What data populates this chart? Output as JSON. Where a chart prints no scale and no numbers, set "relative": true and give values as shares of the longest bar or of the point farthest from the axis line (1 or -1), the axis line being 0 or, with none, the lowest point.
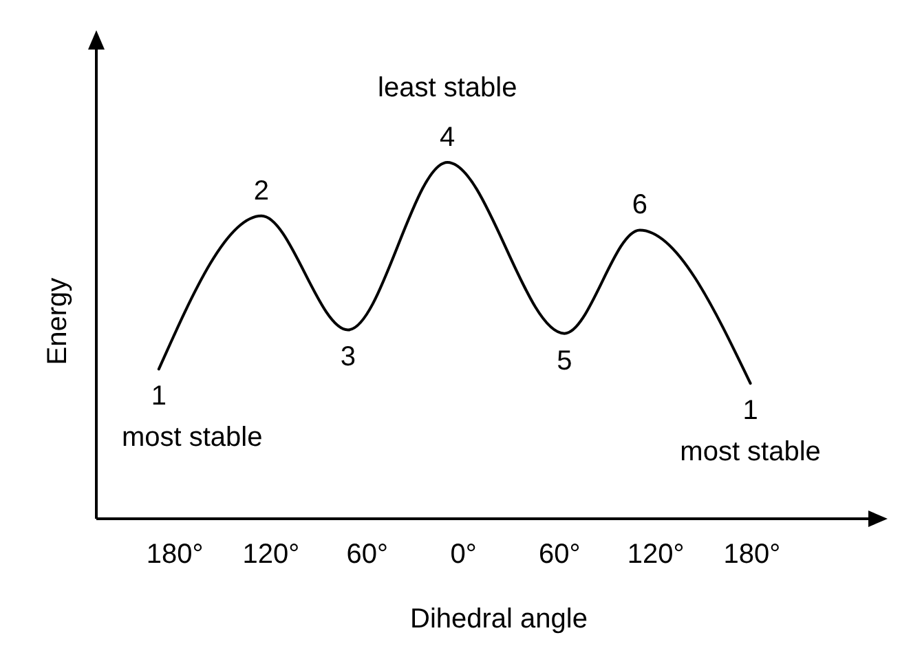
{
  "chart_data": {
    "type": "line",
    "relative": true,
    "xlabel": "Dihedral angle",
    "ylabel": "Energy",
    "x": [
      -190,
      -126,
      -72,
      -10,
      63,
      110,
      179
    ],
    "series": [
      {
        "color": "#000000",
        "values": [
          0.42,
          0.85,
          0.53,
          1,
          0.52,
          0.81,
          0.38
        ]
      }
    ],
    "xlim": [
      -229,
      256
    ],
    "xticks": [
      {
        "value": -180,
        "label": "180°"
      },
      {
        "value": -120,
        "label": "120°"
      },
      {
        "value": -60,
        "label": "60°"
      },
      {
        "value": 0,
        "label": "0°"
      },
      {
        "value": 60,
        "label": "60°"
      },
      {
        "value": 120,
        "label": "120°"
      },
      {
        "value": 180,
        "label": "180°"
      }
    ],
    "tick_labels": "x",
    "annotations": [
      {
        "text": "1\nmost stable",
        "x": -190,
        "y": 0.42
      },
      {
        "text": "2",
        "x": -126,
        "y": 0.85
      },
      {
        "text": "3",
        "x": -72,
        "y": 0.53
      },
      {
        "text": "least stable\n4",
        "x": -10,
        "y": 1
      },
      {
        "text": "5",
        "x": 63,
        "y": 0.52
      },
      {
        "text": "6",
        "x": 110,
        "y": 0.81
      },
      {
        "text": "1\nmost stable",
        "x": 179,
        "y": 0.38
      }
    ]
  }
}
